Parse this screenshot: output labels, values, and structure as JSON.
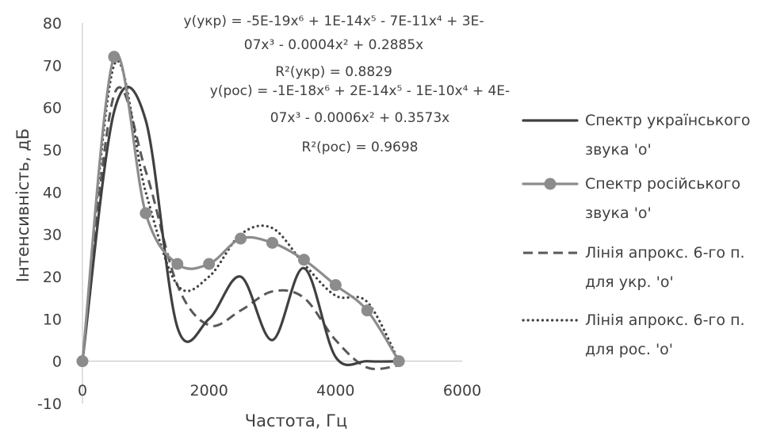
{
  "chart_data": {
    "type": "line",
    "xlabel": "Частота, Гц",
    "ylabel": "Інтенсивність, дБ",
    "xlim": [
      0,
      6000
    ],
    "ylim": [
      -10,
      80
    ],
    "x_ticks": [
      0,
      2000,
      4000,
      6000
    ],
    "y_ticks": [
      -10,
      0,
      10,
      20,
      30,
      40,
      50,
      60,
      70,
      80
    ],
    "grid": false,
    "legend_position": "right",
    "series": [
      {
        "name": "Спектр українського звука 'о'",
        "legend_lines": [
          "Спектр українського",
          "звука 'о'"
        ],
        "style": "solid",
        "color": "#404040",
        "x": [
          0,
          500,
          1000,
          1500,
          2000,
          2500,
          3000,
          3500,
          4000,
          4500,
          5000
        ],
        "y": [
          0,
          59,
          57,
          8,
          10,
          20,
          5,
          22,
          1,
          0,
          0
        ]
      },
      {
        "name": "Спектр російського звука 'о'",
        "legend_lines": [
          "Спектр російського",
          "звука 'о'"
        ],
        "style": "solid-markers",
        "color": "#8c8c8c",
        "x": [
          0,
          500,
          1000,
          1500,
          2000,
          2500,
          3000,
          3500,
          4000,
          4500,
          5000
        ],
        "y": [
          0,
          72,
          35,
          23,
          23,
          29,
          28,
          24,
          18,
          12,
          0
        ]
      },
      {
        "name": "Лінія апрокс. 6-го п. для укр. 'о'",
        "legend_lines": [
          "Лінія апрокс. 6-го п.",
          "для укр. 'о'"
        ],
        "style": "dashed",
        "color": "#595959",
        "x": [
          0,
          500,
          1000,
          1500,
          2000,
          2500,
          3000,
          3500,
          4000,
          4500,
          5000
        ],
        "y": [
          0,
          63,
          45,
          18,
          8.5,
          12,
          16.5,
          15,
          5,
          -1.5,
          -1
        ]
      },
      {
        "name": "Лінія апрокс. 6-го п. для рос. 'о'",
        "legend_lines": [
          "Лінія апрокс. 6-го п.",
          "для рос. 'о'"
        ],
        "style": "dotted",
        "color": "#404040",
        "x": [
          0,
          500,
          1000,
          1500,
          2000,
          2500,
          3000,
          3500,
          4000,
          4500,
          5000
        ],
        "y": [
          0,
          70,
          40,
          18,
          20,
          30,
          31.5,
          23,
          15.5,
          14,
          0
        ]
      }
    ],
    "annotations": [
      {
        "id": "eq_ukr",
        "lines": [
          "y(укр) = -5E-19x⁶ + 1E-14x⁵ - 7E-11x⁴ + 3E-",
          "07x³ - 0.0004x² + 0.2885x",
          "R²(укр) = 0.8829"
        ]
      },
      {
        "id": "eq_ros",
        "lines": [
          "y(рос) = -1E-18x⁶ + 2E-14x⁵ - 1E-10x⁴ + 4E-",
          "07x³ - 0.0006x² + 0.3573x",
          "R²(рос) = 0.9698"
        ]
      }
    ]
  }
}
